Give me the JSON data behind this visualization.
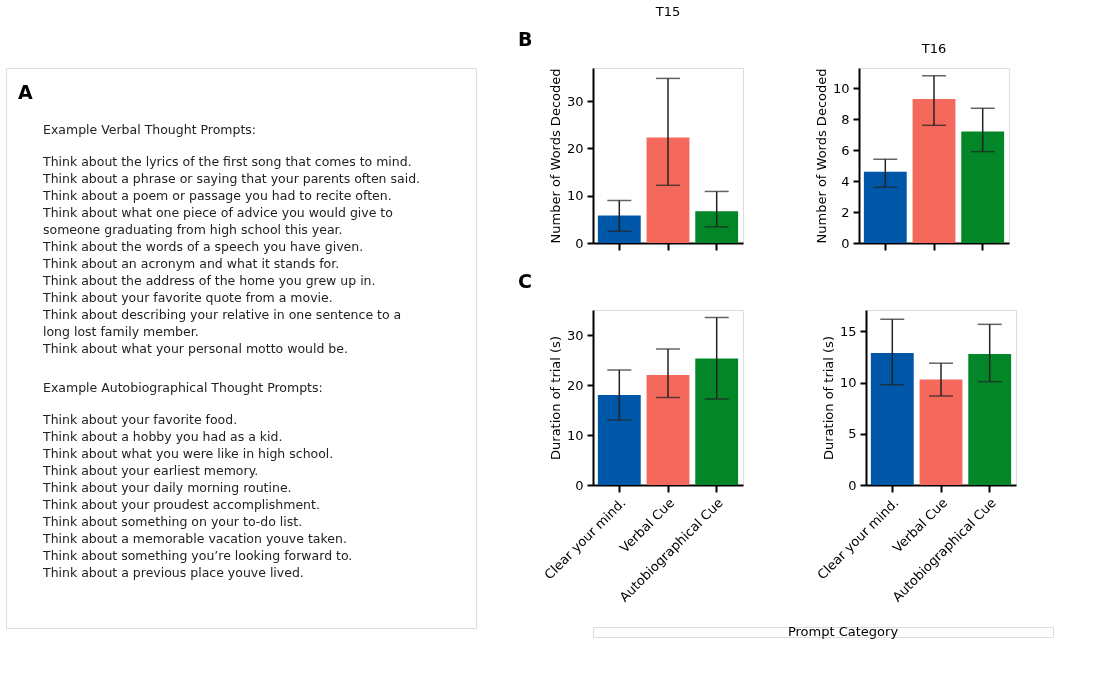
{
  "chart_data": [
    {
      "type": "other",
      "title": "A",
      "annotations": [
        "Example Verbal Thought Prompts:",
        "Think about the lyrics of the first song that comes to mind.",
        "Think about a phrase or saying that your parents often said.",
        "Think about a poem or passage you had to recite often.",
        "Think about what one piece of advice you would give to",
        "someone graduating from high school this year.",
        "Think about the words of a speech you have given.",
        "Think about an acronym and what it stands for.",
        "Think about the address of the home you grew up in.",
        "Think about your favorite quote from a movie.",
        "Think about describing your relative in one sentence to a",
        "long lost family member.",
        "Think about what your personal motto would be.",
        "Example Autobiographical Thought Prompts:",
        "Think about your favorite food.",
        "Think about a hobby you had as a kid.",
        "Think about what you were like in high school.",
        "Think about your earliest memory.",
        "Think about your daily morning routine.",
        "Think about your proudest accomplishment.",
        "Think about something on your to-do list.",
        "Think about a memorable vacation youve taken.",
        "Think about something you’re looking forward to.",
        "Think about a previous place youve lived."
      ]
    },
    {
      "type": "bar",
      "title": "T15",
      "ylabel": "Number of Words Decoded",
      "annotations": [
        "B"
      ],
      "categories": [
        null,
        null,
        null
      ],
      "values": [
        5.8,
        22.3,
        6.7
      ],
      "errors": [
        [
          2.5,
          9
        ],
        [
          12.2,
          34.8
        ],
        [
          3.4,
          10.9
        ]
      ],
      "colors": [
        "#0057a8",
        "#f4695b",
        "#038627"
      ],
      "ylim": [
        0,
        37
      ],
      "yticks": [
        0,
        10,
        20,
        30
      ],
      "tick_labels": "y"
    },
    {
      "type": "bar",
      "title": "T16",
      "ylabel": "Number of Words Decoded",
      "categories": [
        null,
        null,
        null
      ],
      "values": [
        4.6,
        9.3,
        7.2
      ],
      "errors": [
        [
          3.6,
          5.4
        ],
        [
          7.6,
          10.8
        ],
        [
          5.9,
          8.7
        ]
      ],
      "colors": [
        "#0057a8",
        "#f4695b",
        "#038627"
      ],
      "ylim": [
        0,
        11.3
      ],
      "yticks": [
        0,
        2,
        4,
        6,
        8,
        10
      ],
      "tick_labels": "y"
    },
    {
      "type": "bar",
      "ylabel": "Duration of trial (s)",
      "xlabel": "Prompt Category",
      "annotations": [
        "C"
      ],
      "categories": [
        "Clear your mind.",
        "Verbal Cue",
        "Autobiographical Cue"
      ],
      "values": [
        18,
        22,
        25.3
      ],
      "errors": [
        [
          13,
          23
        ],
        [
          17.5,
          27.2
        ],
        [
          17.2,
          33.5
        ]
      ],
      "colors": [
        "#0057a8",
        "#f4695b",
        "#038627"
      ],
      "ylim": [
        0,
        35
      ],
      "yticks": [
        0,
        10,
        20,
        30
      ]
    },
    {
      "type": "bar",
      "ylabel": "Duration of trial (s)",
      "categories": [
        "Clear your mind.",
        "Verbal Cue",
        "Autobiographical Cue"
      ],
      "values": [
        12.9,
        10.3,
        12.8
      ],
      "errors": [
        [
          9.8,
          16.2
        ],
        [
          8.7,
          11.9
        ],
        [
          10.1,
          15.7
        ]
      ],
      "colors": [
        "#0057a8",
        "#f4695b",
        "#038627"
      ],
      "ylim": [
        0,
        17.1
      ],
      "yticks": [
        0,
        5,
        10,
        15
      ]
    }
  ]
}
